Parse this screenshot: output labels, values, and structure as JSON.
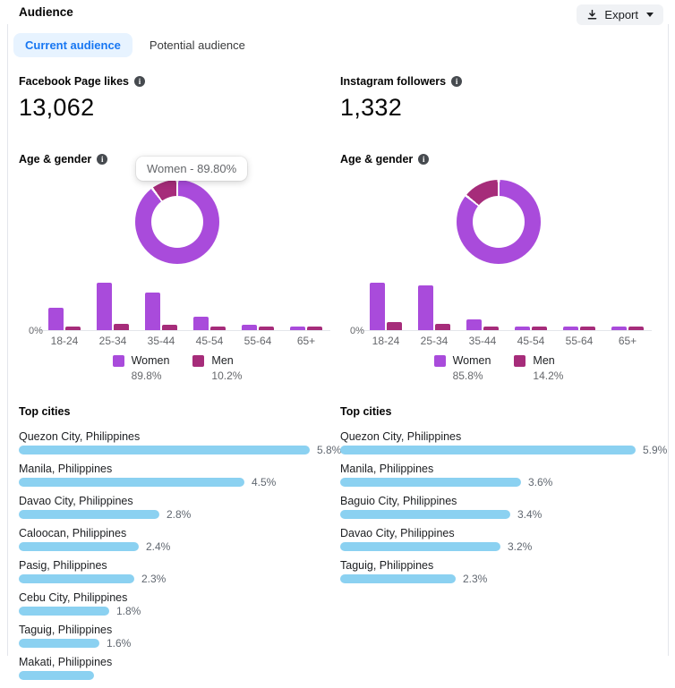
{
  "header": {
    "title": "Audience",
    "export_label": "Export"
  },
  "tabs": [
    {
      "label": "Current audience",
      "active": true
    },
    {
      "label": "Potential audience",
      "active": false
    }
  ],
  "colors": {
    "women": "#A94BDB",
    "men": "#A62C7A",
    "city_bar": "#8BD1F1",
    "tab_active_bg": "#E7F3FF",
    "tab_active_text": "#1877F2"
  },
  "chart_data": [
    {
      "panel": "facebook",
      "metric_label": "Facebook Page likes",
      "metric_value": "13,062",
      "section_title": "Age & gender",
      "tooltip": "Women - 89.80%",
      "donut": {
        "type": "pie",
        "labels": [
          "Women",
          "Men"
        ],
        "values": [
          89.8,
          10.2
        ]
      },
      "age_chart": {
        "type": "bar",
        "categories": [
          "18-24",
          "25-34",
          "35-44",
          "45-54",
          "55-64",
          "65+"
        ],
        "series": [
          {
            "name": "Women",
            "values": [
              14,
              30,
              24,
              8.5,
              3.4,
              2.3
            ]
          },
          {
            "name": "Men",
            "values": [
              2.2,
              4,
              3.4,
              2.2,
              2.2,
              2.2
            ]
          }
        ],
        "ylabel_zero": "0%",
        "grid": "baseline-only",
        "legend_position": "bottom"
      },
      "legend": [
        {
          "label": "Women",
          "pct": "89.8%"
        },
        {
          "label": "Men",
          "pct": "10.2%"
        }
      ],
      "cities_title": "Top cities",
      "cities": {
        "type": "hbar",
        "items": [
          {
            "name": "Quezon City, Philippines",
            "value": 5.8,
            "label": "5.8%"
          },
          {
            "name": "Manila, Philippines",
            "value": 4.5,
            "label": "4.5%"
          },
          {
            "name": "Davao City, Philippines",
            "value": 2.8,
            "label": "2.8%"
          },
          {
            "name": "Caloocan, Philippines",
            "value": 2.4,
            "label": "2.4%"
          },
          {
            "name": "Pasig, Philippines",
            "value": 2.3,
            "label": "2.3%"
          },
          {
            "name": "Cebu City, Philippines",
            "value": 1.8,
            "label": "1.8%"
          },
          {
            "name": "Taguig, Philippines",
            "value": 1.6,
            "label": "1.6%"
          },
          {
            "name": "Makati, Philippines",
            "value": 1.5,
            "label": ""
          }
        ]
      }
    },
    {
      "panel": "instagram",
      "metric_label": "Instagram followers",
      "metric_value": "1,332",
      "section_title": "Age & gender",
      "donut": {
        "type": "pie",
        "labels": [
          "Women",
          "Men"
        ],
        "values": [
          85.8,
          14.2
        ]
      },
      "age_chart": {
        "type": "bar",
        "categories": [
          "18-24",
          "25-34",
          "35-44",
          "45-54",
          "55-64",
          "65+"
        ],
        "series": [
          {
            "name": "Women",
            "values": [
              30,
              28.5,
              7,
              2.3,
              2.3,
              2.3
            ]
          },
          {
            "name": "Men",
            "values": [
              5,
              4,
              2.3,
              2.3,
              2.3,
              2.3
            ]
          }
        ],
        "ylabel_zero": "0%",
        "grid": "baseline-only",
        "legend_position": "bottom"
      },
      "legend": [
        {
          "label": "Women",
          "pct": "85.8%"
        },
        {
          "label": "Men",
          "pct": "14.2%"
        }
      ],
      "cities_title": "Top cities",
      "cities": {
        "type": "hbar",
        "items": [
          {
            "name": "Quezon City, Philippines",
            "value": 5.9,
            "label": "5.9%"
          },
          {
            "name": "Manila, Philippines",
            "value": 3.6,
            "label": "3.6%"
          },
          {
            "name": "Baguio City, Philippines",
            "value": 3.4,
            "label": "3.4%"
          },
          {
            "name": "Davao City, Philippines",
            "value": 3.2,
            "label": "3.2%"
          },
          {
            "name": "Taguig, Philippines",
            "value": 2.3,
            "label": "2.3%"
          }
        ]
      }
    }
  ]
}
